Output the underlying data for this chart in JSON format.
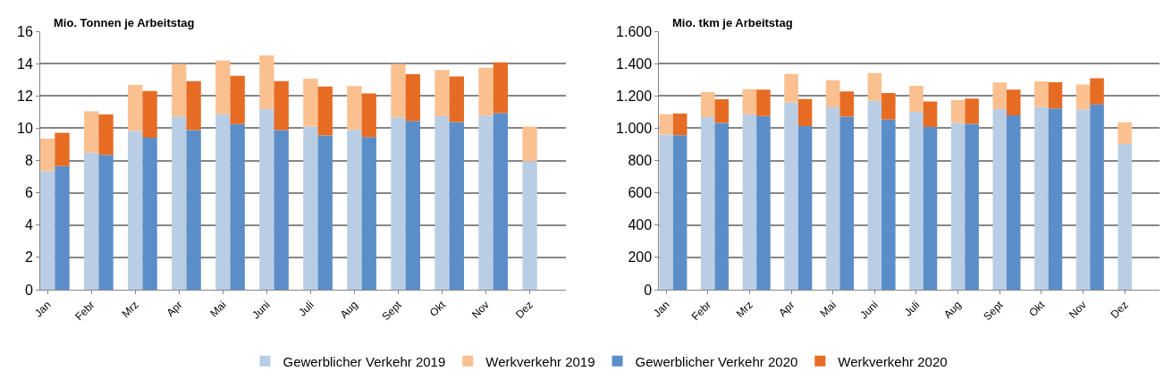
{
  "chart_data": [
    {
      "type": "bar",
      "title": "Mio. Tonnen je Arbeitstag",
      "stacked": true,
      "categories": [
        "Jan",
        null,
        null,
        "Febr",
        null,
        null,
        "Mrz",
        null,
        null,
        "Apr",
        null,
        null,
        "Mai",
        null,
        null,
        "Juni",
        null,
        null,
        "Juli",
        null,
        null,
        "Aug",
        null,
        null,
        "Sept",
        null,
        null,
        "Okt",
        null,
        null,
        "Nov",
        null,
        null,
        "Dez",
        null,
        null
      ],
      "series": [
        {
          "name": "Gewerblicher Verkehr 2019",
          "color": "#b9cde4",
          "values": [
            7.34,
            null,
            null,
            8.48,
            null,
            null,
            9.83,
            null,
            null,
            10.73,
            null,
            null,
            10.87,
            null,
            null,
            11.19,
            null,
            null,
            10.1,
            null,
            null,
            9.9,
            null,
            null,
            10.67,
            null,
            null,
            10.74,
            null,
            null,
            10.78,
            null,
            null,
            7.96,
            null,
            null
          ]
        },
        {
          "name": "Werkverkehr 2019",
          "color": "#fac090",
          "values": [
            2.02,
            null,
            null,
            2.56,
            null,
            null,
            2.85,
            null,
            null,
            3.25,
            null,
            null,
            3.32,
            null,
            null,
            3.31,
            null,
            null,
            2.96,
            null,
            null,
            2.71,
            null,
            null,
            3.31,
            null,
            null,
            2.86,
            null,
            null,
            2.97,
            null,
            null,
            2.14,
            null,
            null
          ]
        },
        {
          "name": "Gewerblicher Verkehr 2020",
          "color": "#5b8ec9",
          "values": [
            null,
            7.66,
            null,
            null,
            8.34,
            null,
            null,
            9.41,
            null,
            null,
            9.88,
            null,
            null,
            10.26,
            null,
            null,
            9.88,
            null,
            null,
            9.55,
            null,
            null,
            9.46,
            null,
            null,
            10.45,
            null,
            null,
            10.38,
            null,
            null,
            10.93,
            null,
            null,
            null,
            null
          ]
        },
        {
          "name": "Werkverkehr 2020",
          "color": "#e66c24",
          "values": [
            null,
            2.06,
            null,
            null,
            2.51,
            null,
            null,
            2.89,
            null,
            null,
            3.04,
            null,
            null,
            2.98,
            null,
            null,
            3.03,
            null,
            null,
            3.03,
            null,
            null,
            2.69,
            null,
            null,
            2.89,
            null,
            null,
            2.82,
            null,
            null,
            3.14,
            null,
            null,
            null,
            null
          ]
        }
      ],
      "ylim": [
        0,
        16
      ],
      "yticks": [
        0,
        2,
        4,
        6,
        8,
        10,
        12,
        14,
        16
      ],
      "grid": "y",
      "legend": "bottom"
    },
    {
      "type": "bar",
      "title": "Mio. tkm je Arbeitstag",
      "stacked": true,
      "categories": [
        "Jan",
        null,
        null,
        "Febr",
        null,
        null,
        "Mrz",
        null,
        null,
        "Apr",
        null,
        null,
        "Mai",
        null,
        null,
        "Juni",
        null,
        null,
        "Juli",
        null,
        null,
        "Aug",
        null,
        null,
        "Sept",
        null,
        null,
        "Okt",
        null,
        null,
        "Nov",
        null,
        null,
        "Dez",
        null,
        null
      ],
      "series": [
        {
          "color": "#b9cde4",
          "values": [
            960,
            null,
            null,
            1069,
            null,
            null,
            1087,
            null,
            null,
            1160,
            null,
            null,
            1129,
            null,
            null,
            1169,
            null,
            null,
            1101,
            null,
            null,
            1032,
            null,
            null,
            1118,
            null,
            null,
            1132,
            null,
            null,
            1116,
            null,
            null,
            903,
            null,
            null
          ]
        },
        {
          "color": "#fac090",
          "values": [
            127,
            null,
            null,
            154,
            null,
            null,
            154,
            null,
            null,
            175,
            null,
            null,
            168,
            null,
            null,
            172,
            null,
            null,
            161,
            null,
            null,
            142,
            null,
            null,
            165,
            null,
            null,
            158,
            null,
            null,
            155,
            null,
            null,
            133,
            null,
            null
          ]
        },
        {
          "color": "#5b8ec9",
          "values": [
            null,
            957,
            null,
            null,
            1032,
            null,
            null,
            1076,
            null,
            null,
            1013,
            null,
            null,
            1071,
            null,
            null,
            1053,
            null,
            null,
            1008,
            null,
            null,
            1027,
            null,
            null,
            1080,
            null,
            null,
            1122,
            null,
            null,
            1148,
            null,
            null,
            null,
            null
          ]
        },
        {
          "color": "#e66c24",
          "values": [
            null,
            133,
            null,
            null,
            147,
            null,
            null,
            163,
            null,
            null,
            168,
            null,
            null,
            156,
            null,
            null,
            165,
            null,
            null,
            157,
            null,
            null,
            156,
            null,
            null,
            159,
            null,
            null,
            163,
            null,
            null,
            161,
            null,
            null,
            null,
            null
          ]
        }
      ],
      "ylim": [
        0,
        1600
      ],
      "yticks": [
        {
          "value": 0,
          "label": "0"
        },
        {
          "value": 200,
          "label": "200"
        },
        {
          "value": 400,
          "label": "400"
        },
        {
          "value": 600,
          "label": "600"
        },
        {
          "value": 800,
          "label": "800"
        },
        {
          "value": 1000,
          "label": "1.000"
        },
        {
          "value": 1200,
          "label": "1.200"
        },
        {
          "value": 1400,
          "label": "1.400"
        },
        {
          "value": 1600,
          "label": "1.600"
        }
      ],
      "grid": "y"
    }
  ]
}
